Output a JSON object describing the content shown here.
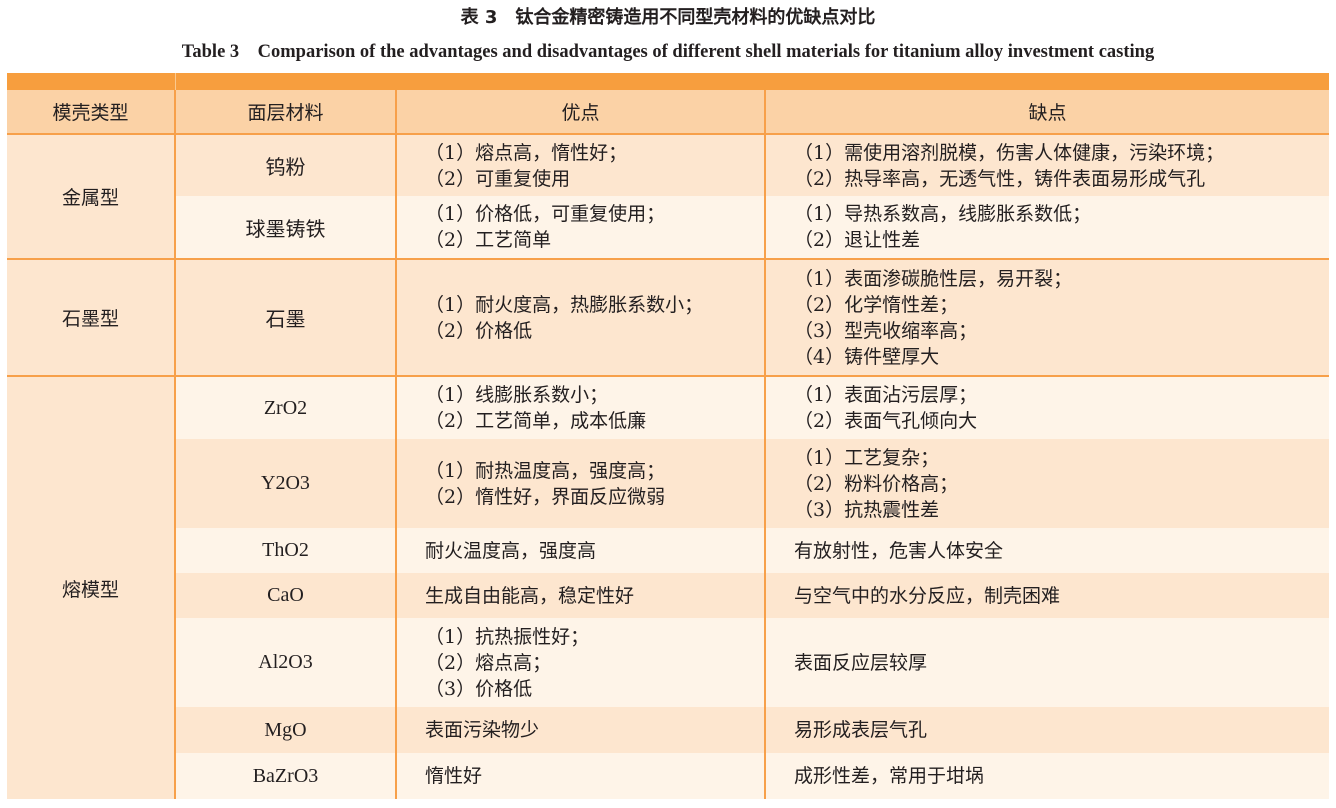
{
  "caption": {
    "cn": "表 3　钛合金精密铸造用不同型壳材料的优缺点对比",
    "en": "Table 3　Comparison of the advantages and disadvantages of different shell materials for titanium alloy investment casting"
  },
  "colors": {
    "top_bar": "#f79e3e",
    "header": "#fbd2a6",
    "row_dark": "#fde6cf",
    "row_light": "#fef4e8",
    "rule": "#f7a04a"
  },
  "headers": [
    "模壳类型",
    "面层材料",
    "优点",
    "缺点"
  ],
  "groups": [
    {
      "type": "金属型",
      "materials": [
        {
          "name": "钨粉",
          "pros": [
            "（1）熔点高，惰性好；",
            "（2）可重复使用"
          ],
          "cons": [
            "（1）需使用溶剂脱模，伤害人体健康，污染环境；",
            "（2）热导率高，无透气性，铸件表面易形成气孔"
          ]
        },
        {
          "name": "球墨铸铁",
          "pros": [
            "（1）价格低，可重复使用；",
            "（2）工艺简单"
          ],
          "cons": [
            "（1）导热系数高，线膨胀系数低；",
            "（2）退让性差"
          ]
        }
      ]
    },
    {
      "type": "石墨型",
      "materials": [
        {
          "name": "石墨",
          "pros": [
            "（1）耐火度高，热膨胀系数小；",
            "（2）价格低"
          ],
          "cons": [
            "（1）表面渗碳脆性层，易开裂；",
            "（2）化学惰性差；",
            "（3）型壳收缩率高；",
            "（4）铸件壁厚大"
          ]
        }
      ]
    },
    {
      "type": "熔模型",
      "materials": [
        {
          "name": "ZrO2",
          "pros": [
            "（1）线膨胀系数小；",
            "（2）工艺简单，成本低廉"
          ],
          "cons": [
            "（1）表面沾污层厚；",
            "（2）表面气孔倾向大"
          ]
        },
        {
          "name": "Y2O3",
          "pros": [
            "（1）耐热温度高，强度高；",
            "（2）惰性好，界面反应微弱"
          ],
          "cons": [
            "（1）工艺复杂；",
            "（2）粉料价格高；",
            "（3）抗热震性差"
          ]
        },
        {
          "name": "ThO2",
          "pros": [
            "耐火温度高，强度高"
          ],
          "cons": [
            "有放射性，危害人体安全"
          ]
        },
        {
          "name": "CaO",
          "pros": [
            "生成自由能高，稳定性好"
          ],
          "cons": [
            "与空气中的水分反应，制壳困难"
          ]
        },
        {
          "name": "Al2O3",
          "pros": [
            "（1）抗热振性好；",
            "（2）熔点高；",
            "（3）价格低"
          ],
          "cons": [
            "表面反应层较厚"
          ]
        },
        {
          "name": "MgO",
          "pros": [
            "表面污染物少"
          ],
          "cons": [
            "易形成表层气孔"
          ]
        },
        {
          "name": "BaZrO3",
          "pros": [
            "惰性好"
          ],
          "cons": [
            "成形性差，常用于坩埚"
          ]
        }
      ]
    }
  ]
}
